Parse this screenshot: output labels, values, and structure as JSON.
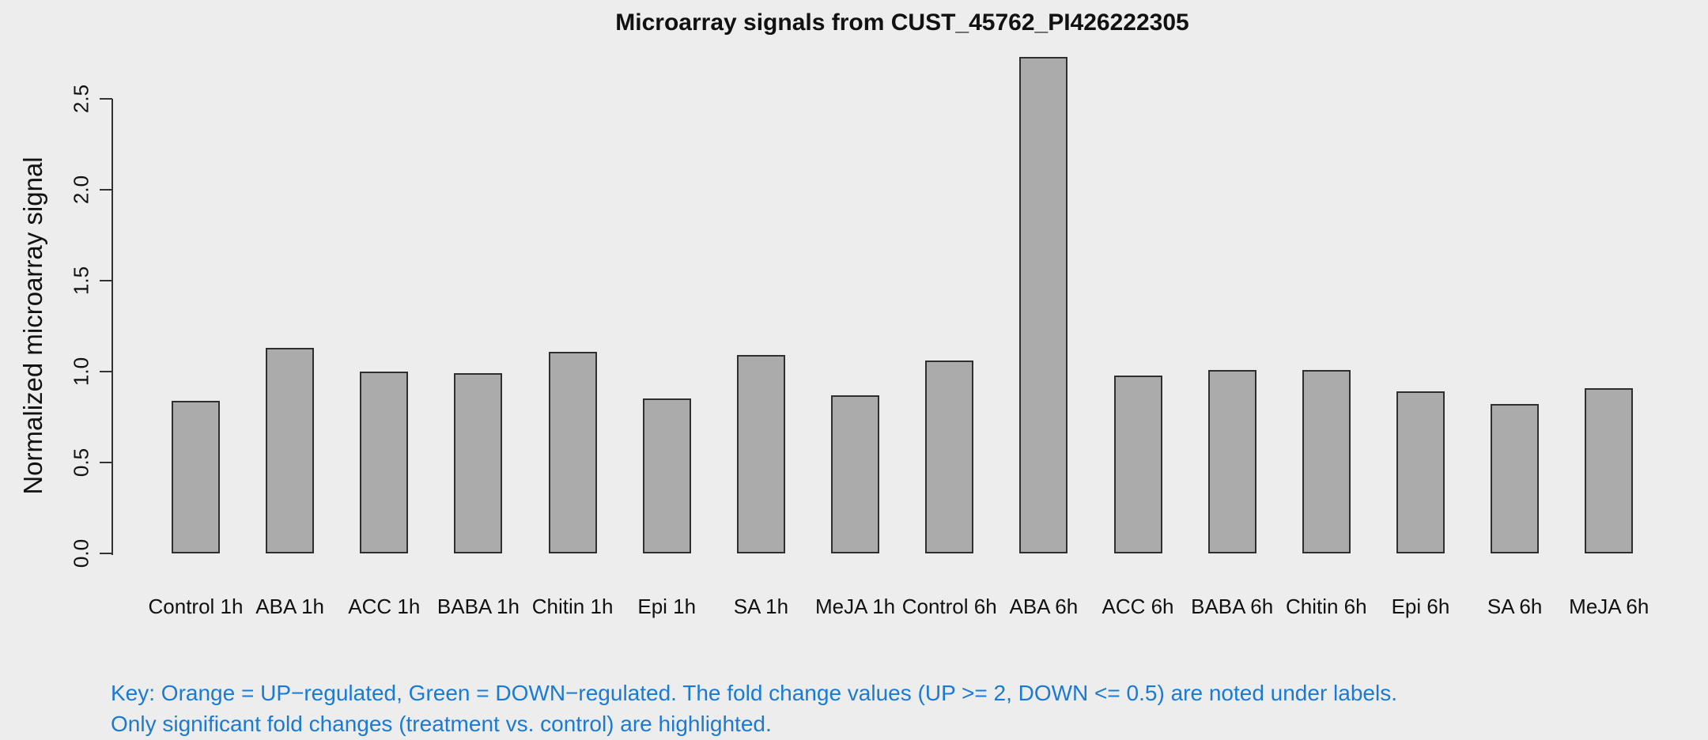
{
  "chart_data": {
    "type": "bar",
    "title": "Microarray signals from CUST_45762_PI426222305",
    "xlabel": "",
    "ylabel": "Normalized microarray signal",
    "categories": [
      "Control 1h",
      "ABA 1h",
      "ACC 1h",
      "BABA 1h",
      "Chitin 1h",
      "Epi 1h",
      "SA 1h",
      "MeJA 1h",
      "Control 6h",
      "ABA 6h",
      "ACC 6h",
      "BABA 6h",
      "Chitin 6h",
      "Epi 6h",
      "SA 6h",
      "MeJA 6h"
    ],
    "values": [
      0.84,
      1.13,
      1.0,
      0.99,
      1.11,
      0.85,
      1.09,
      0.87,
      1.06,
      2.73,
      0.98,
      1.01,
      1.01,
      0.89,
      0.82,
      0.91
    ],
    "yticks": [
      0.0,
      0.5,
      1.0,
      1.5,
      2.0,
      2.5
    ],
    "ytick_labels": [
      "0.0",
      "0.5",
      "1.0",
      "1.5",
      "2.0",
      "2.5"
    ],
    "ylim": [
      0,
      2.85
    ],
    "grid": false,
    "legend_position": "none",
    "colors": {
      "bar_fill": "#ABABAB",
      "bar_border": "#2F2F2F",
      "background": "#EDEDED",
      "axis": "#333333",
      "title_text": "#111111",
      "footnote_text": "#1B7AD2"
    }
  },
  "footnote": {
    "line1": "Key: Orange = UP−regulated, Green = DOWN−regulated. The fold change values (UP >= 2, DOWN <= 0.5) are noted under labels.",
    "line2": "Only significant fold changes (treatment vs. control) are highlighted."
  }
}
